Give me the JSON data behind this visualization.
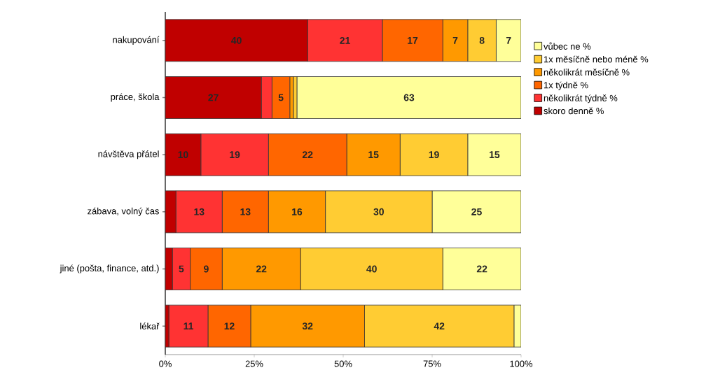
{
  "chart_data": {
    "type": "bar",
    "stacked": true,
    "orientation": "horizontal",
    "categories": [
      "nakupování",
      "práce, škola",
      "návštěva přátel",
      "zábava, volný čas",
      "jiné (pošta, finance, atd.)",
      "lékař"
    ],
    "series": [
      {
        "name": "skoro denně %",
        "color": "#c00000",
        "values": [
          40,
          27,
          10,
          3,
          2,
          1
        ],
        "value_labels": [
          "40",
          "27",
          "10",
          null,
          null,
          null
        ]
      },
      {
        "name": "několikrát týdně %",
        "color": "#ff3333",
        "values": [
          21,
          3,
          19,
          13,
          5,
          11
        ],
        "value_labels": [
          "21",
          null,
          "19",
          "13",
          "5",
          "11"
        ]
      },
      {
        "name": "1x  týdně %",
        "color": "#ff6600",
        "values": [
          17,
          5,
          22,
          13,
          9,
          12
        ],
        "value_labels": [
          "17",
          "5",
          "22",
          "13",
          "9",
          "12"
        ]
      },
      {
        "name": "několikrát měsíčně %",
        "color": "#ff9900",
        "values": [
          7,
          1,
          15,
          16,
          22,
          32
        ],
        "value_labels": [
          "7",
          null,
          "15",
          "16",
          "22",
          "32"
        ]
      },
      {
        "name": "1x měsíčně nebo méně %",
        "color": "#ffcc33",
        "values": [
          8,
          1,
          19,
          30,
          40,
          42
        ],
        "value_labels": [
          "8",
          null,
          "19",
          "30",
          "40",
          "42"
        ]
      },
      {
        "name": "vůbec ne %",
        "color": "#ffff99",
        "values": [
          7,
          63,
          15,
          25,
          22,
          2
        ],
        "value_labels": [
          "7",
          "63",
          "15",
          "25",
          "22",
          null
        ]
      }
    ],
    "xlim": [
      0,
      100
    ],
    "xticks": [
      {
        "value": 0,
        "label": "0%"
      },
      {
        "value": 25,
        "label": "25%"
      },
      {
        "value": 50,
        "label": "50%"
      },
      {
        "value": 75,
        "label": "75%"
      },
      {
        "value": 100,
        "label": "100%"
      }
    ],
    "legend": "right"
  }
}
